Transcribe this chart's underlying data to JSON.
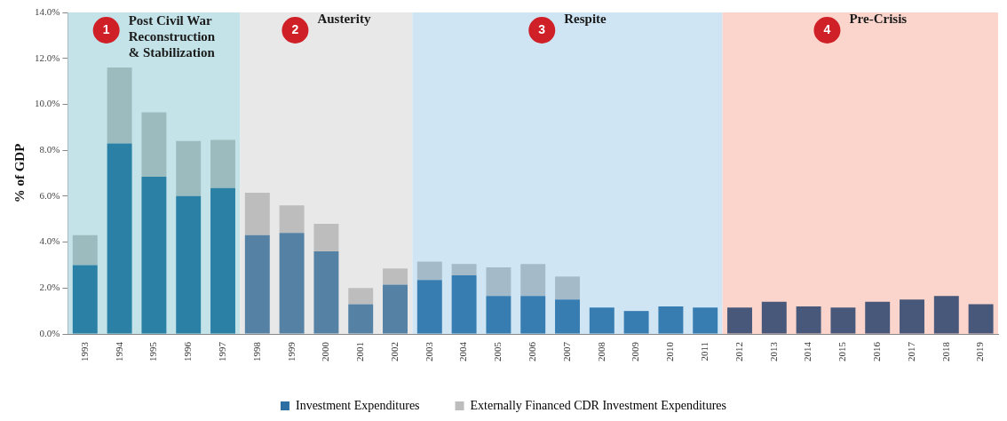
{
  "chart_data": {
    "type": "bar",
    "stacked": true,
    "ylabel": "% of GDP",
    "categories": [
      "1993",
      "1994",
      "1995",
      "1996",
      "1997",
      "1998",
      "1999",
      "2000",
      "2001",
      "2002",
      "2003",
      "2004",
      "2005",
      "2006",
      "2007",
      "2008",
      "2009",
      "2010",
      "2011",
      "2012",
      "2013",
      "2014",
      "2015",
      "2016",
      "2017",
      "2018",
      "2019"
    ],
    "series": [
      {
        "name": "Investment Expenditures",
        "color": "#2e6fa3",
        "values": [
          3.0,
          8.3,
          6.85,
          6.0,
          6.35,
          4.3,
          4.4,
          3.6,
          1.3,
          2.15,
          2.35,
          2.55,
          1.65,
          1.65,
          1.5,
          1.15,
          1.0,
          1.2,
          1.15,
          1.15,
          1.4,
          1.2,
          1.15,
          1.4,
          1.5,
          1.65,
          1.3
        ],
        "colors": [
          "#2b80a6",
          "#2b80a6",
          "#2b80a6",
          "#2b80a6",
          "#2b80a6",
          "#5581a5",
          "#5581a5",
          "#5581a5",
          "#5581a5",
          "#5581a5",
          "#377db2",
          "#377db2",
          "#377db2",
          "#377db2",
          "#377db2",
          "#377db2",
          "#377db2",
          "#377db2",
          "#377db2",
          "#47587a",
          "#47587a",
          "#47587a",
          "#47587a",
          "#47587a",
          "#47587a",
          "#47587a",
          "#47587a"
        ]
      },
      {
        "name": "Externally Financed CDR Investment Expenditures",
        "color": "#bdbdbd",
        "values": [
          1.3,
          3.3,
          2.8,
          2.4,
          2.1,
          1.85,
          1.2,
          1.2,
          0.7,
          0.7,
          0.8,
          0.5,
          1.25,
          1.4,
          1.0,
          null,
          null,
          null,
          null,
          null,
          null,
          null,
          null,
          null,
          null,
          null,
          null
        ],
        "colors": [
          "#9bbbbe",
          "#9bbbbe",
          "#9bbbbe",
          "#9bbbbe",
          "#9bbbbe",
          "#bdbdbd",
          "#bdbdbd",
          "#bdbdbd",
          "#bdbdbd",
          "#bdbdbd",
          "#a5bac9",
          "#a5bac9",
          "#a5bac9",
          "#a5bac9",
          "#a5bac9",
          "#a5bac9",
          "#a5bac9",
          "#a5bac9",
          "#a5bac9",
          "#a5bac9",
          "#a5bac9",
          "#a5bac9",
          "#a5bac9",
          "#a5bac9",
          "#a5bac9",
          "#a5bac9",
          "#a5bac9"
        ]
      }
    ],
    "ylim": [
      0,
      14
    ],
    "yticks": [
      {
        "value": 0,
        "label": "0.0%"
      },
      {
        "value": 2,
        "label": "2.0%"
      },
      {
        "value": 4,
        "label": "4.0%"
      },
      {
        "value": 6,
        "label": "6.0%"
      },
      {
        "value": 8,
        "label": "8.0%"
      },
      {
        "value": 10,
        "label": "10.0%"
      },
      {
        "value": 12,
        "label": "12.0%"
      },
      {
        "value": 14,
        "label": "14.0%"
      }
    ],
    "bands": [
      {
        "axis": "x",
        "from": "1993",
        "to": "1997",
        "label": "Post Civil War\nReconstruction\n& Stabilization",
        "color": "#c4e3e8"
      },
      {
        "axis": "x",
        "from": "1998",
        "to": "2002",
        "label": "Austerity",
        "color": "#e8e8e8"
      },
      {
        "axis": "x",
        "from": "2003",
        "to": "2011",
        "label": "Respite",
        "color": "#cfe5f4"
      },
      {
        "axis": "x",
        "from": "2012",
        "to": "2019",
        "label": "Pre-Crisis",
        "color": "#fbd5cc"
      }
    ],
    "annotations": [
      "1",
      "2",
      "3",
      "4"
    ],
    "grid": false,
    "legend": "bottom"
  }
}
